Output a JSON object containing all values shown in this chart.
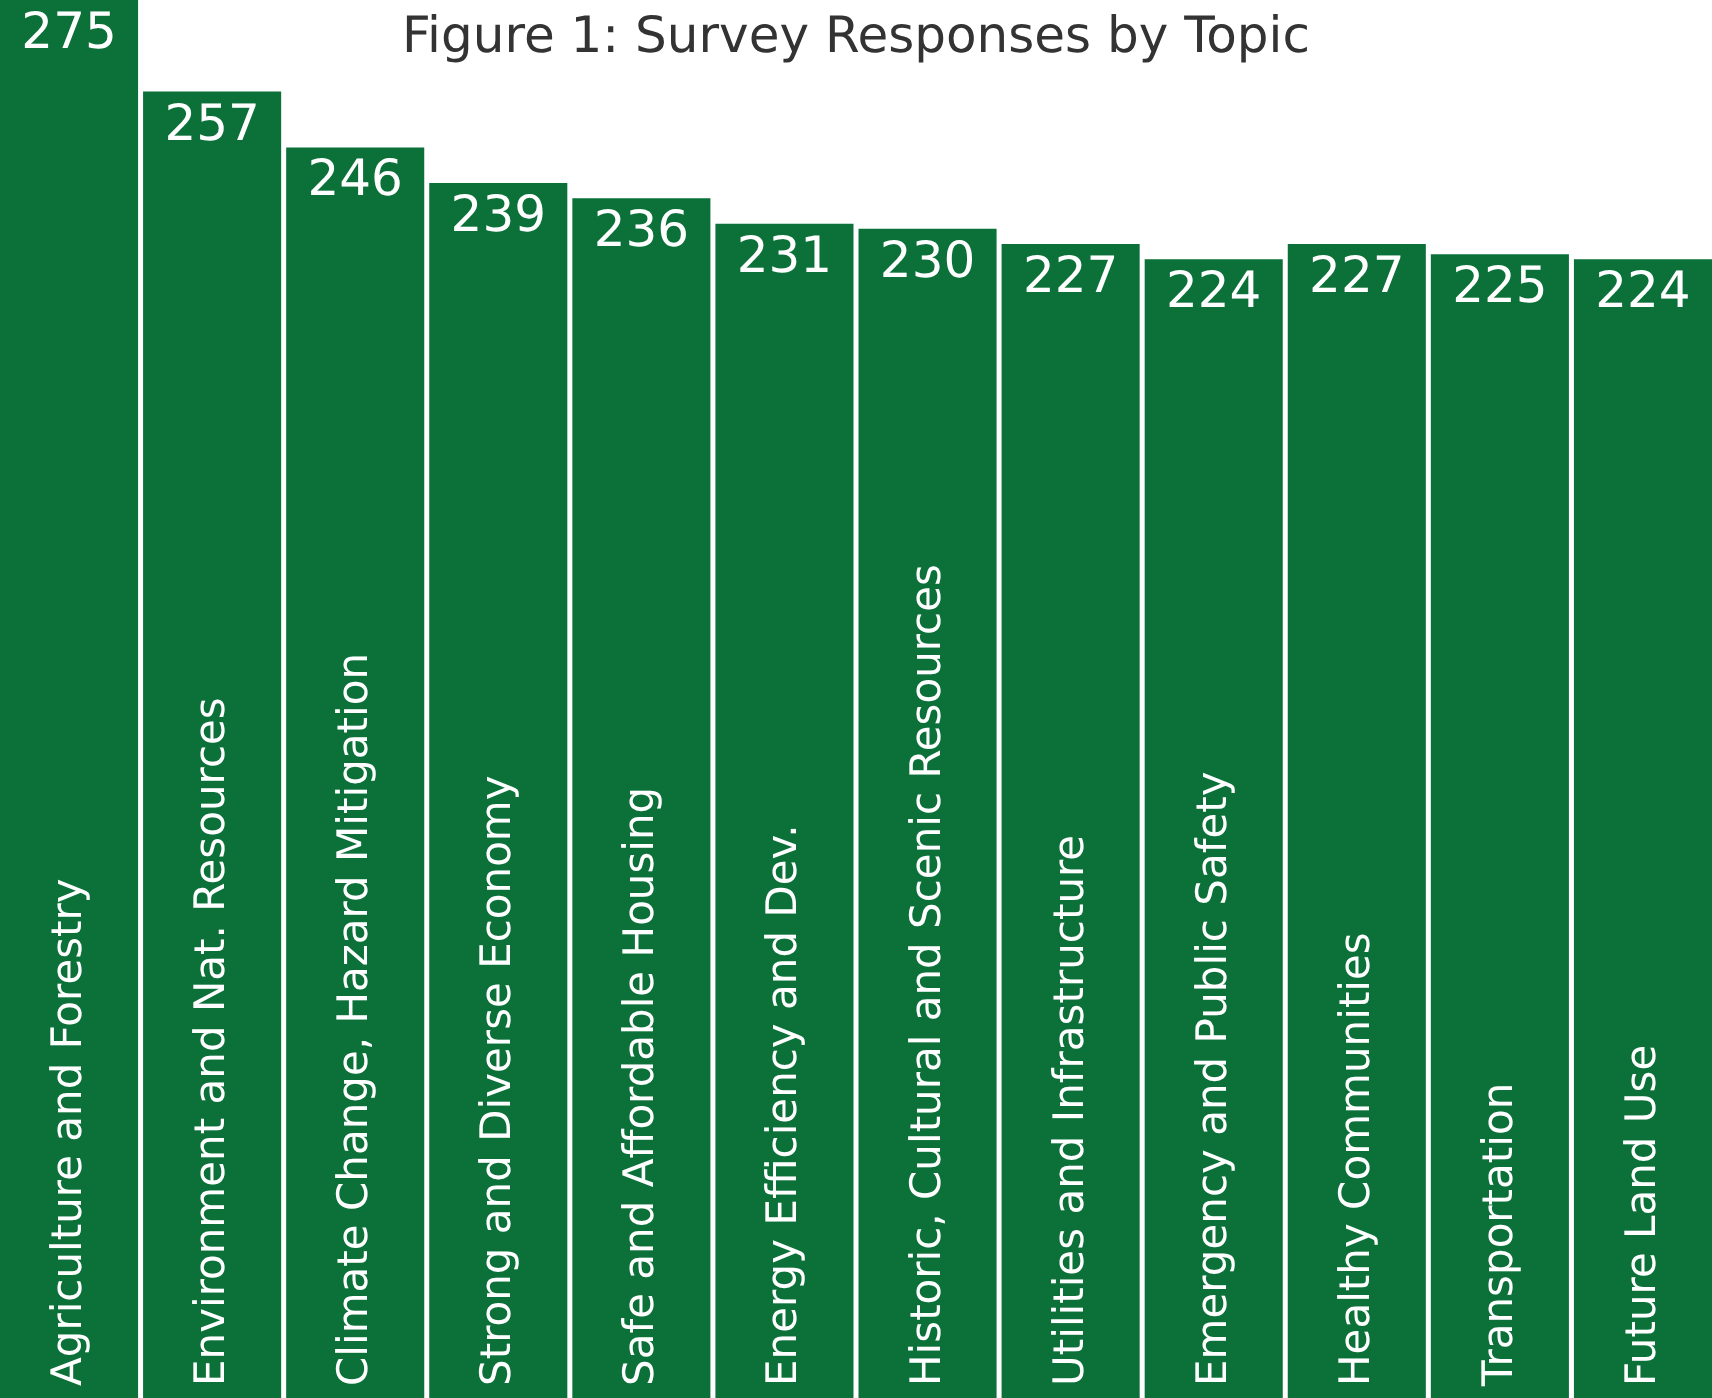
{
  "chart_data": {
    "type": "bar",
    "title": "Figure 1: Survey Responses by Topic",
    "categories": [
      "Agriculture and Forestry",
      "Environment and Nat. Resources",
      "Climate Change, Hazard Mitigation",
      "Strong and Diverse Economy",
      "Safe and Affordable Housing",
      "Energy Efficiency and Dev.",
      "Historic, Cultural and Scenic Resources",
      "Utilities and Infrastructure",
      "Emergency and Public Safety",
      "Healthy Communities",
      "Transportation",
      "Future Land Use"
    ],
    "values": [
      275,
      257,
      246,
      239,
      236,
      231,
      230,
      227,
      224,
      227,
      225,
      224
    ],
    "color": "#0b7139",
    "ylim": [
      0,
      275
    ],
    "data_labels": true
  }
}
